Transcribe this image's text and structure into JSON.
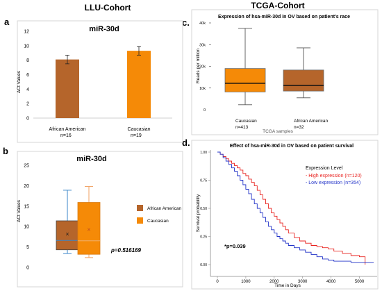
{
  "cohort_titles": {
    "llu": "LLU-Cohort",
    "tcga": "TCGA-Cohort"
  },
  "panel_letters": {
    "a": "a",
    "b": "b",
    "c": "c.",
    "d": "d."
  },
  "colors": {
    "african_american": "#b5652b",
    "caucasian": "#f58a07",
    "high_expression": "#e8221f",
    "low_expression": "#2233c8"
  },
  "chart_data": [
    {
      "id": "a",
      "type": "bar",
      "title": "miR-30d",
      "ylabel": "ΔCt Values",
      "ylim": [
        0,
        12
      ],
      "yticks": [
        0,
        2,
        4,
        6,
        8,
        10,
        12
      ],
      "categories": [
        "African American",
        "Caucasian"
      ],
      "category_sublabels": [
        "n=16",
        "n=19"
      ],
      "values": [
        8.1,
        9.3
      ],
      "errors": [
        0.6,
        0.6
      ],
      "colors": [
        "#b5652b",
        "#f58a07"
      ]
    },
    {
      "id": "b",
      "type": "box",
      "title": "miR-30d",
      "ylabel": "ΔCt Values",
      "ylim": [
        0,
        25
      ],
      "yticks": [
        0,
        5,
        10,
        15,
        20,
        25
      ],
      "series": [
        {
          "name": "African American",
          "min": 3.4,
          "q1": 4.3,
          "median": 6.6,
          "q3": 11.4,
          "max": 18.9,
          "mean": 8.2,
          "color": "#b5652b"
        },
        {
          "name": "Caucasian",
          "min": 2.4,
          "q1": 3.2,
          "median": 6.5,
          "q3": 15.9,
          "max": 19.8,
          "mean": 9.3,
          "color": "#f58a07"
        }
      ],
      "legend": [
        "African American",
        "Caucasian"
      ],
      "annotation": "p=0.516169"
    },
    {
      "id": "c",
      "type": "box",
      "title": "Expression of hsa-miR-30d in OV based on patient's race",
      "ylabel": "Reads per million",
      "xlabel": "TCGA samples",
      "ylim": [
        0,
        40000
      ],
      "yticks": [
        0,
        10000,
        20000,
        30000,
        40000
      ],
      "ytick_labels": [
        "0",
        "10k",
        "20k",
        "30k",
        "40k"
      ],
      "categories": [
        "Caucasian",
        "African American"
      ],
      "category_sublabels": [
        "n=413",
        "n=32"
      ],
      "series": [
        {
          "name": "Caucasian",
          "min": 2300,
          "q1": 8200,
          "median": 12200,
          "q3": 19000,
          "max": 37500,
          "color": "#f58a07"
        },
        {
          "name": "African American",
          "min": 5500,
          "q1": 8600,
          "median": 11200,
          "q3": 18300,
          "max": 28500,
          "color": "#b5652b"
        }
      ]
    },
    {
      "id": "d",
      "type": "line",
      "title": "Effect of hsa-miR-30d in OV based on patient survival",
      "xlabel": "Time in Days",
      "ylabel": "Survival probability",
      "xlim": [
        0,
        5500
      ],
      "ylim": [
        0,
        1.0
      ],
      "xticks": [
        0,
        1000,
        2000,
        3000,
        4000,
        5000
      ],
      "yticks": [
        0,
        0.25,
        0.5,
        0.75,
        1.0
      ],
      "ytick_labels": [
        "0.00",
        "0.25",
        "0.50",
        "0.75",
        "1.00"
      ],
      "legend_title": "Expression Level",
      "annotation": "*p=0.039",
      "series": [
        {
          "name": "- High expression (n=120)",
          "color": "#e8221f",
          "x": [
            0,
            100,
            200,
            300,
            400,
            500,
            600,
            700,
            800,
            900,
            1000,
            1100,
            1200,
            1300,
            1400,
            1500,
            1600,
            1700,
            1800,
            1900,
            2000,
            2100,
            2200,
            2300,
            2400,
            2500,
            2700,
            2900,
            3100,
            3300,
            3500,
            3700,
            3900,
            4100,
            4400,
            4700,
            5000,
            5200,
            5200
          ],
          "y": [
            1.0,
            0.98,
            0.96,
            0.94,
            0.92,
            0.9,
            0.88,
            0.86,
            0.84,
            0.81,
            0.79,
            0.76,
            0.73,
            0.7,
            0.66,
            0.62,
            0.58,
            0.54,
            0.5,
            0.46,
            0.43,
            0.4,
            0.37,
            0.34,
            0.31,
            0.28,
            0.24,
            0.21,
            0.19,
            0.17,
            0.16,
            0.15,
            0.14,
            0.12,
            0.1,
            0.08,
            0.07,
            0.07,
            0.0
          ]
        },
        {
          "name": "- Low expression (n=354)",
          "color": "#2233c8",
          "x": [
            0,
            100,
            200,
            300,
            400,
            500,
            600,
            700,
            800,
            900,
            1000,
            1100,
            1200,
            1300,
            1400,
            1500,
            1600,
            1700,
            1800,
            1900,
            2000,
            2100,
            2200,
            2300,
            2400,
            2500,
            2700,
            2900,
            3100,
            3300,
            3500,
            3700,
            3900,
            4100,
            4400,
            4700,
            5000,
            5300,
            5500
          ],
          "y": [
            1.0,
            0.98,
            0.95,
            0.92,
            0.89,
            0.86,
            0.83,
            0.79,
            0.75,
            0.71,
            0.67,
            0.63,
            0.58,
            0.54,
            0.5,
            0.46,
            0.42,
            0.38,
            0.34,
            0.31,
            0.28,
            0.25,
            0.23,
            0.21,
            0.19,
            0.17,
            0.15,
            0.13,
            0.11,
            0.09,
            0.07,
            0.05,
            0.04,
            0.03,
            0.03,
            0.02,
            0.02,
            0.02,
            0.02
          ]
        }
      ]
    }
  ]
}
